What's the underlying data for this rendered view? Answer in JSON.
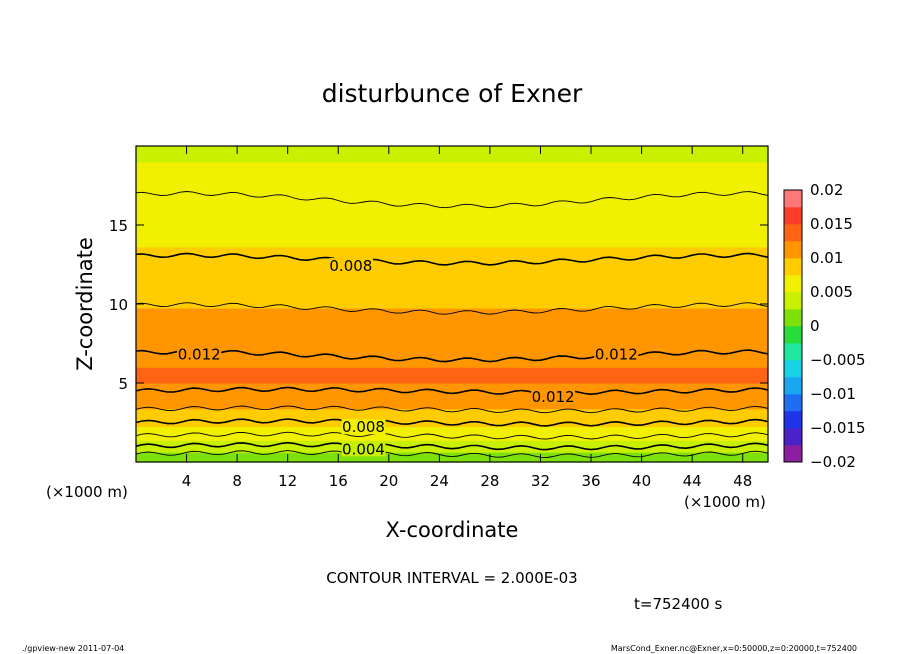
{
  "chart_data": {
    "type": "heatmap",
    "title": "disturbunce of Exner",
    "xlabel": "X-coordinate",
    "ylabel": "Z-coordinate",
    "x_unit_left": "(×1000 m)",
    "x_unit_right": "(×1000 m)",
    "xlim": [
      0,
      50
    ],
    "ylim": [
      0,
      20
    ],
    "xticks": [
      4,
      8,
      12,
      16,
      20,
      24,
      28,
      32,
      36,
      40,
      44,
      48
    ],
    "yticks": [
      5,
      10,
      15
    ],
    "colorbar": {
      "ticks": [
        "0.02",
        "0.015",
        "0.01",
        "0.005",
        "0",
        "−0.005",
        "−0.01",
        "−0.015",
        "−0.02"
      ],
      "range": [
        -0.02,
        0.02
      ]
    },
    "contour_labels": [
      {
        "text": "0.008",
        "x": 17,
        "z": 12.4
      },
      {
        "text": "0.012",
        "x": 5,
        "z": 6.8
      },
      {
        "text": "0.012",
        "x": 38,
        "z": 6.8
      },
      {
        "text": "0.012",
        "x": 33,
        "z": 4.1
      },
      {
        "text": "0.008",
        "x": 18,
        "z": 2.2
      },
      {
        "text": "0.004",
        "x": 18,
        "z": 0.8
      }
    ],
    "profile": {
      "z": [
        0,
        0.5,
        1,
        1.5,
        2,
        2.5,
        3,
        3.5,
        4,
        5,
        6,
        7,
        8,
        9,
        10,
        11,
        12,
        13,
        14,
        15,
        16,
        17,
        18,
        19,
        20
      ],
      "value": [
        0.0005,
        0.002,
        0.004,
        0.0055,
        0.007,
        0.008,
        0.009,
        0.0105,
        0.0115,
        0.0125,
        0.0125,
        0.0118,
        0.0112,
        0.0105,
        0.0098,
        0.0091,
        0.0085,
        0.0079,
        0.0073,
        0.0068,
        0.0063,
        0.0058,
        0.0054,
        0.005,
        0.0047
      ]
    },
    "contour_interval": "CONTOUR INTERVAL = 2.000E-03",
    "time_label": "t=752400 s"
  },
  "footer": {
    "left": "./gpview-new   2011-07-04",
    "right": "MarsCond_Exner.nc@Exner,x=0:50000,z=0:20000,t=752400"
  },
  "colors": {
    "scale": [
      "#8c1fa0",
      "#4a22c8",
      "#1e34e6",
      "#1f6ef2",
      "#1ba6f0",
      "#18d2e6",
      "#20e6a0",
      "#28dc3c",
      "#7ee20a",
      "#c8f000",
      "#f0f000",
      "#ffcc00",
      "#ff9600",
      "#ff6414",
      "#ff3c28",
      "#ff7878"
    ]
  }
}
